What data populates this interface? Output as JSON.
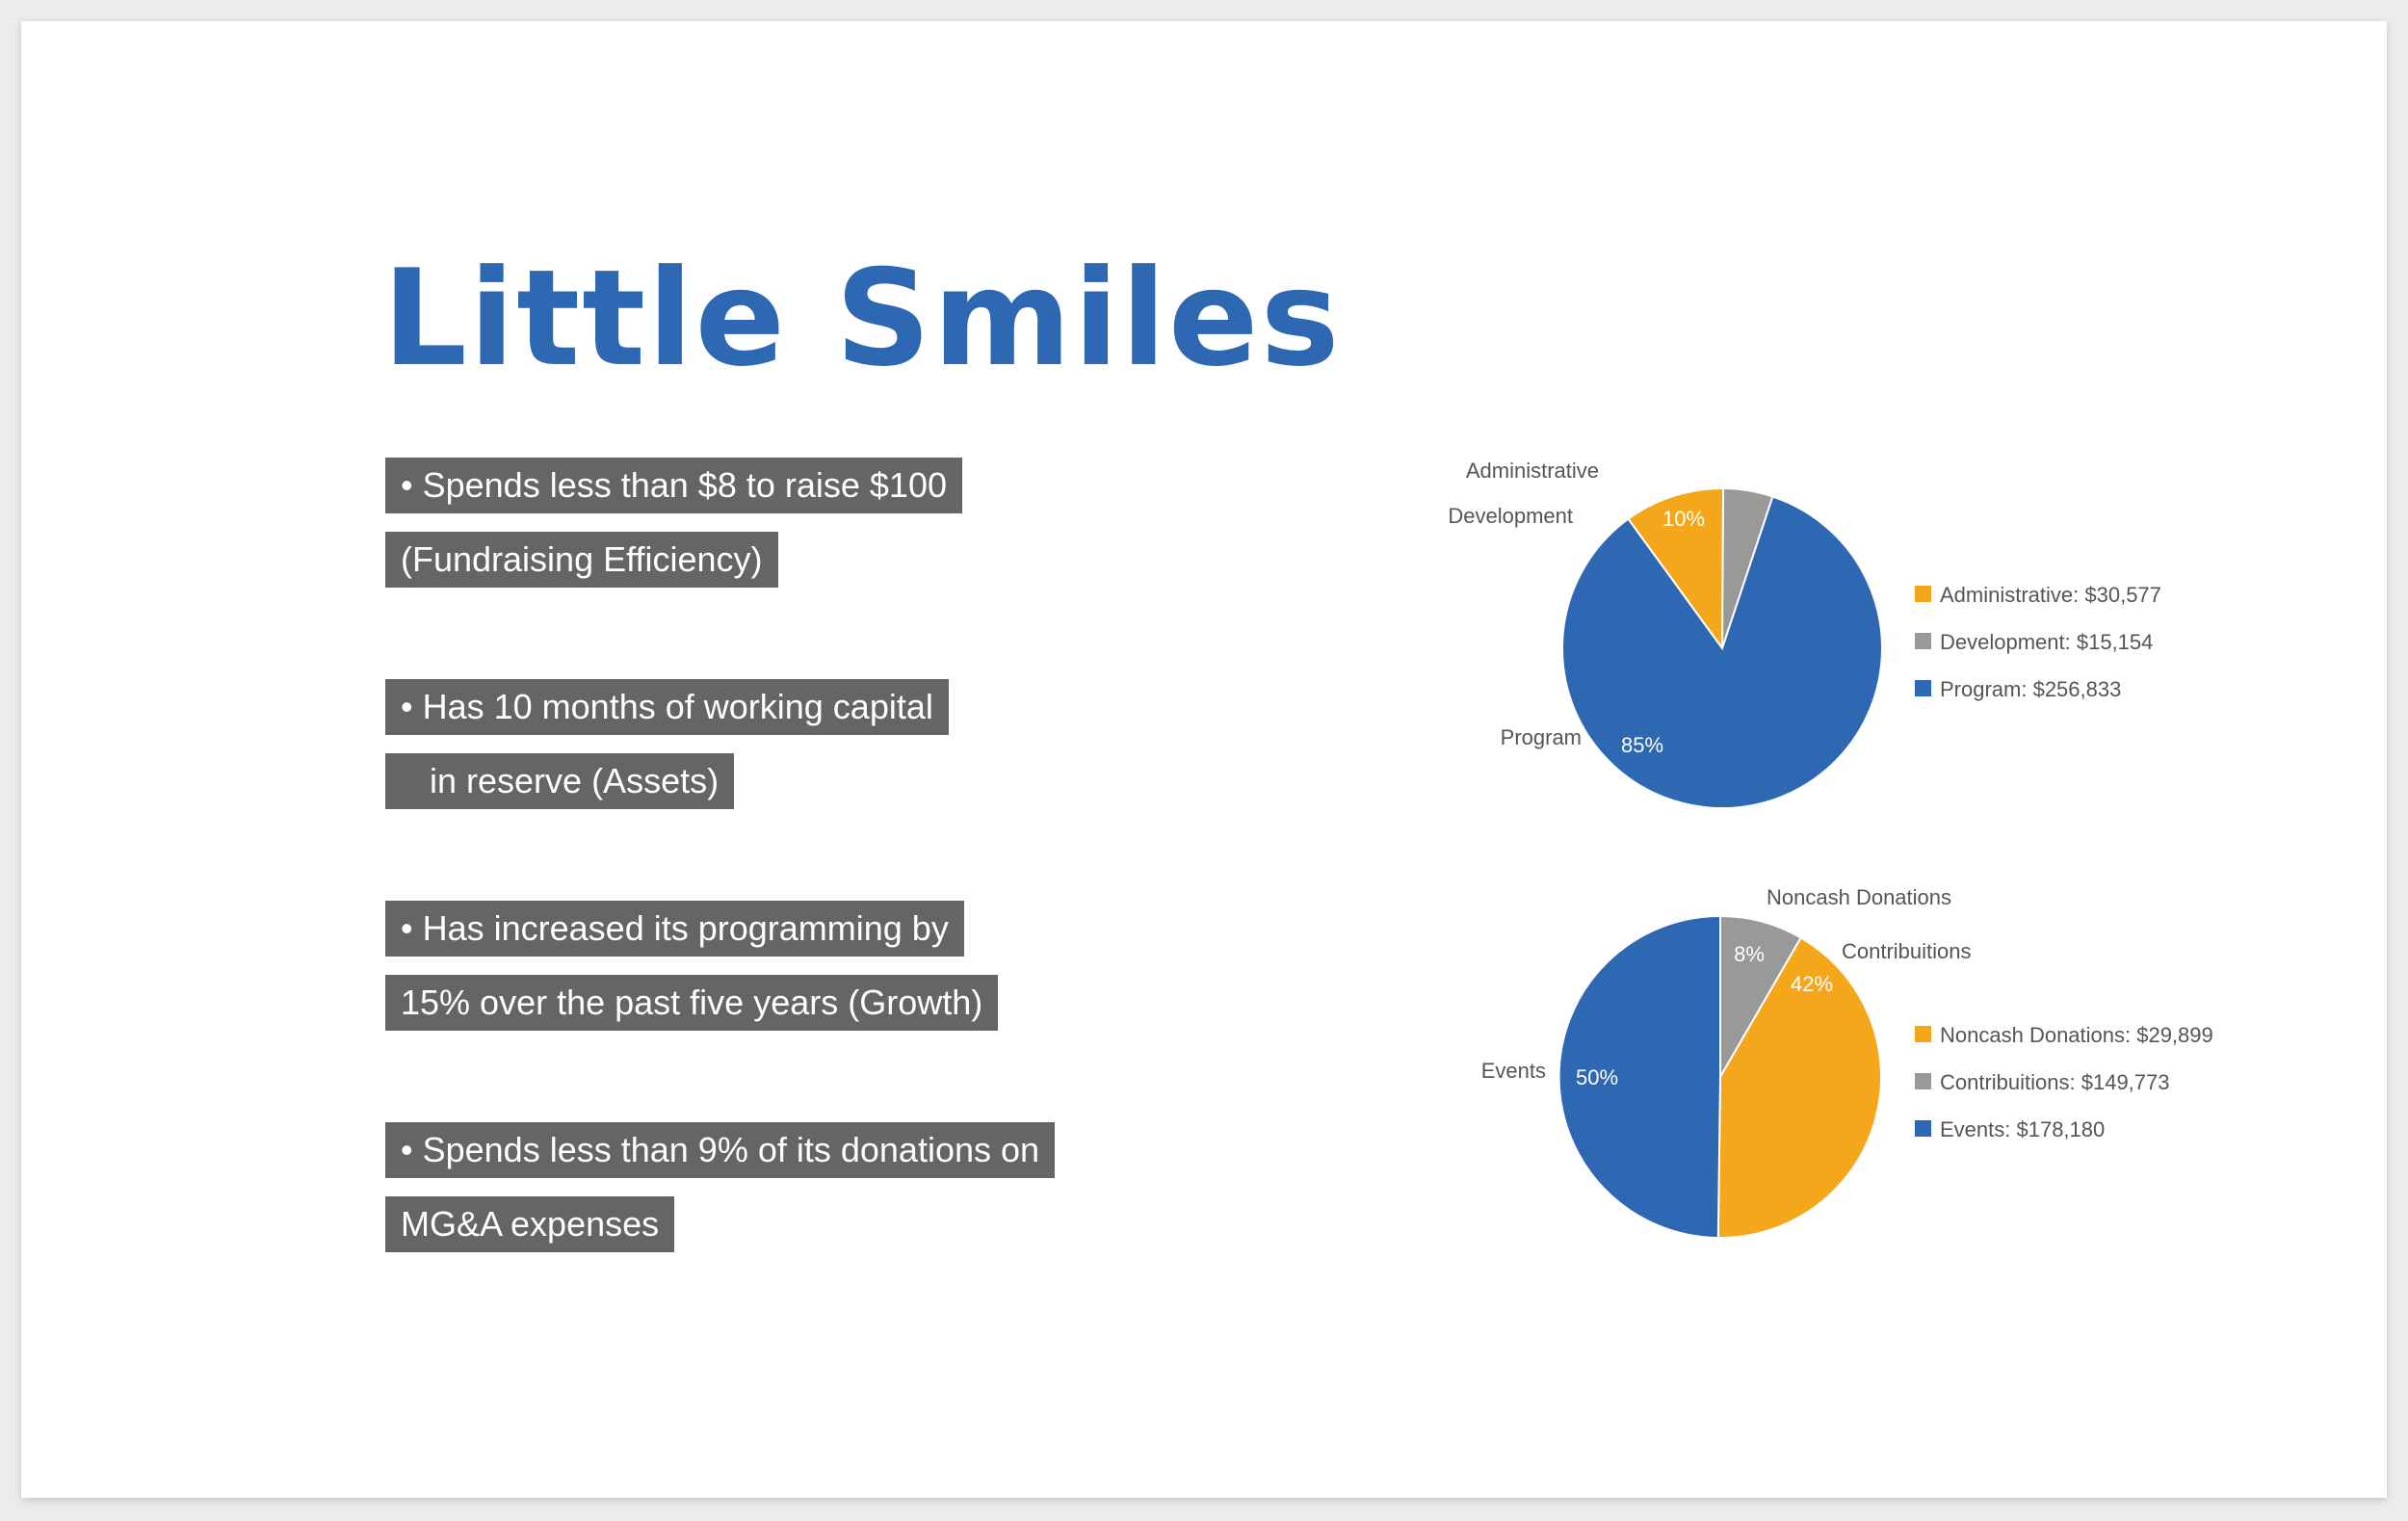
{
  "title": "Little Smiles",
  "bullets": [
    {
      "line1": "• Spends less than $8 to raise $100",
      "line2": "(Fundraising Efficiency)"
    },
    {
      "line1": "• Has 10 months of working capital",
      "line2": "   in reserve (Assets)"
    },
    {
      "line1": "• Has increased its programming by",
      "line2": "15% over the past five years (Growth)"
    },
    {
      "line1": "• Spends less than 9% of its donations on",
      "line2": "MG&A expenses"
    }
  ],
  "colors": {
    "blue": "#2e67b2",
    "orange": "#f5a71c",
    "gray": "#999999",
    "title": "#2e67b2",
    "bullet_bg": "#656565"
  },
  "chart_data": [
    {
      "type": "pie",
      "slices": [
        {
          "label": "Administrative",
          "legend": "Administrative: $30,577",
          "value": 30577,
          "pct_label": "10%",
          "color": "#f5a71c"
        },
        {
          "label": "Development",
          "legend": "Development: $15,154",
          "value": 15154,
          "pct_label": "5%",
          "color": "#999999"
        },
        {
          "label": "Program",
          "legend": "Program: $256,833",
          "value": 256833,
          "pct_label": "85%",
          "color": "#2e67b2"
        }
      ],
      "legend_position": "right"
    },
    {
      "type": "pie",
      "slices": [
        {
          "label": "Noncash Donations",
          "legend": "Noncash Donations: $29,899",
          "value": 29899,
          "pct_label": "8%",
          "color": "#999999"
        },
        {
          "label": "Contribuitions",
          "legend": "Contribuitions: $149,773",
          "value": 149773,
          "pct_label": "42%",
          "color": "#f5a71c"
        },
        {
          "label": "Events",
          "legend": "Events: $178,180",
          "value": 178180,
          "pct_label": "50%",
          "color": "#2e67b2"
        }
      ],
      "legend_position": "right",
      "legend_swatch_colors": [
        "#f5a71c",
        "#999999",
        "#2e67b2"
      ]
    }
  ]
}
